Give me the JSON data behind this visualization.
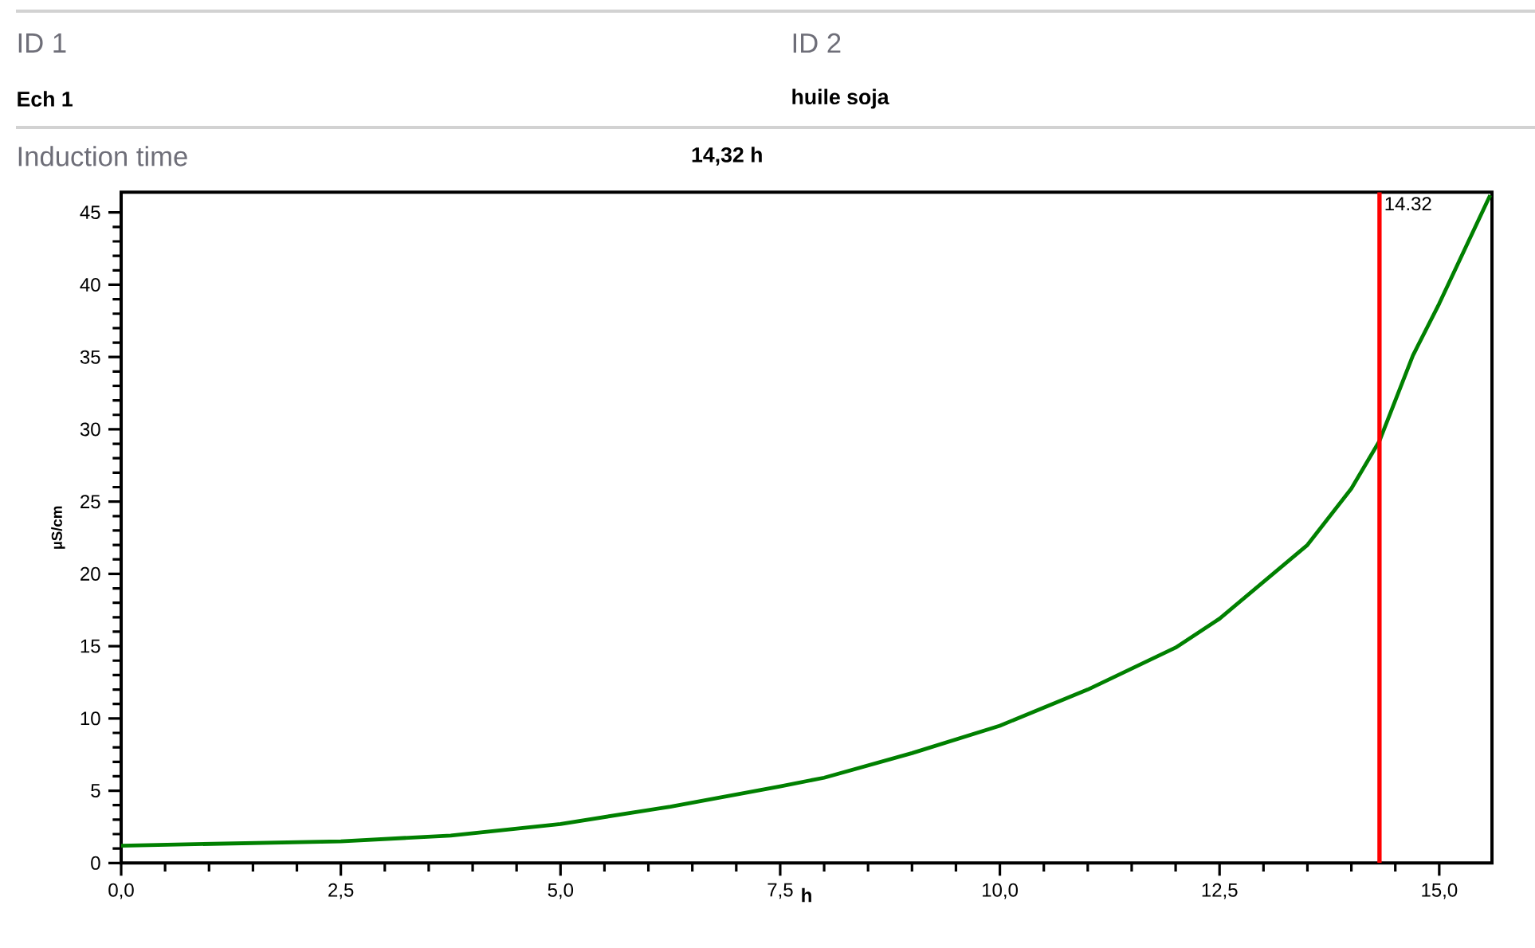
{
  "chart_data": {
    "type": "line",
    "xlabel": "h",
    "ylabel": "µS/cm",
    "annotations": [
      "ID 1",
      "Ech 1",
      "ID 2",
      "huile soja",
      "Induction time",
      "14,32 h"
    ],
    "x": [
      0,
      2.5,
      3.75,
      5,
      6.25,
      7.5,
      8,
      9,
      10,
      11,
      12,
      12.5,
      13.5,
      14,
      14.32,
      14.7,
      15,
      15.58
    ],
    "series": [
      {
        "color": "#008000",
        "values": [
          1.2,
          1.5,
          1.9,
          2.7,
          3.9,
          5.3,
          5.9,
          7.6,
          9.5,
          12.0,
          14.9,
          16.9,
          22.0,
          25.9,
          29.2,
          35.1,
          38.7,
          46.2
        ]
      }
    ],
    "xlim": [
      0,
      15.6
    ],
    "ylim": [
      0,
      46.4
    ],
    "xticks": [
      {
        "value": 0,
        "label": "0,0"
      },
      {
        "value": 2.5,
        "label": "2,5"
      },
      {
        "value": 5,
        "label": "5,0"
      },
      {
        "value": 7.5,
        "label": "7,5"
      },
      {
        "value": 10,
        "label": "10,0"
      },
      {
        "value": 12.5,
        "label": "12,5"
      },
      {
        "value": 15,
        "label": "15,0"
      }
    ],
    "yticks": [
      0,
      5,
      10,
      15,
      20,
      25,
      30,
      35,
      40,
      45
    ],
    "ref_lines": [
      {
        "axis": "x",
        "value": 14.32,
        "label": "14.32",
        "color": "#ff0000"
      }
    ],
    "grid": false,
    "marker": "none",
    "line_style": "solid"
  }
}
